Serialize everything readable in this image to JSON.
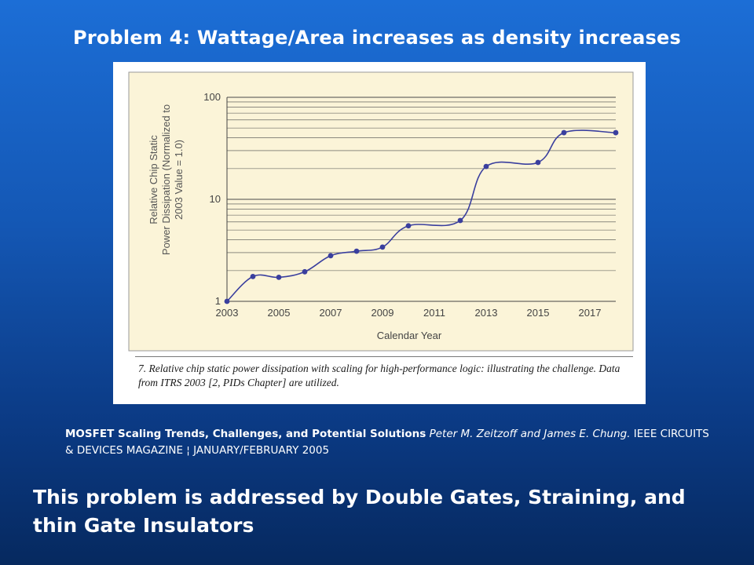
{
  "slide": {
    "title": "Problem 4:  Wattage/Area increases as density increases",
    "conclusion": "This problem is addressed by Double Gates, Straining, and thin Gate Insulators"
  },
  "figure": {
    "caption": "7. Relative chip static power dissipation with scaling for high-performance logic: illustrating the challenge. Data from ITRS 2003 [2, PIDs Chapter] are utilized."
  },
  "citation": {
    "article_title": "MOSFET Scaling Trends, Challenges, and Potential Solutions",
    "authors": "Peter M. Zeitzoff and James E. Chung.",
    "source": "IEEE CIRCUITS & DEVICES MAGAZINE ¦ JANUARY/FEBRUARY 2005"
  },
  "chart_data": {
    "type": "line",
    "title": "",
    "xlabel": "Calendar Year",
    "ylabel_lines": [
      "Relative Chip Static",
      "Power Dissipation (Normalized to",
      "2003 Value = 1.0)"
    ],
    "x_ticks": [
      "2003",
      "2005",
      "2007",
      "2009",
      "2011",
      "2013",
      "2015",
      "2017"
    ],
    "y_ticks": [
      "1",
      "10",
      "100"
    ],
    "y_scale": "log",
    "xlim": [
      2003,
      2018
    ],
    "ylim": [
      1,
      100
    ],
    "grid": true,
    "colors": {
      "series": "#3a3f9e",
      "background": "#fbf4d8",
      "grid": "#4a4a4a"
    },
    "series": [
      {
        "x": [
          2003,
          2004,
          2005,
          2006,
          2007,
          2008,
          2009,
          2010,
          2012,
          2013,
          2015,
          2016,
          2018
        ],
        "values": [
          1.0,
          1.75,
          1.72,
          1.95,
          2.8,
          3.1,
          3.4,
          5.5,
          6.2,
          21,
          23,
          45,
          45
        ]
      }
    ]
  }
}
